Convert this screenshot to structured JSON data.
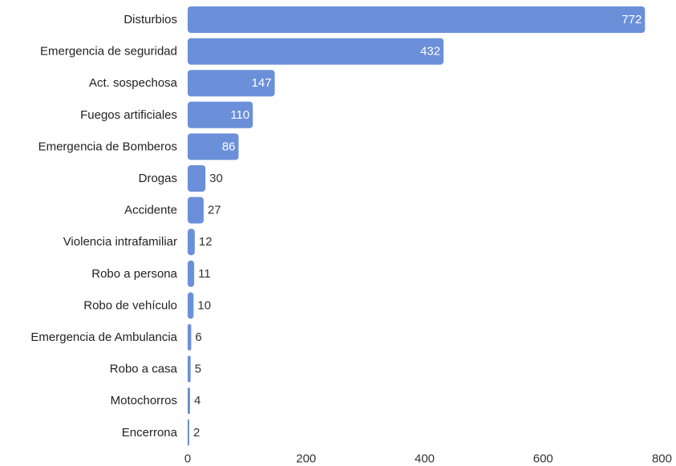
{
  "chart_data": {
    "type": "bar",
    "orientation": "horizontal",
    "categories": [
      "Disturbios",
      "Emergencia de seguridad",
      "Act. sospechosa",
      "Fuegos artificiales",
      "Emergencia de Bomberos",
      "Drogas",
      "Accidente",
      "Violencia intrafamiliar",
      "Robo a persona",
      "Robo de vehículo",
      "Emergencia de Ambulancia",
      "Robo a casa",
      "Motochorros",
      "Encerrona"
    ],
    "values": [
      772,
      432,
      147,
      110,
      86,
      30,
      27,
      12,
      11,
      10,
      6,
      5,
      4,
      2
    ],
    "xlim": [
      0,
      800
    ],
    "xticks": [
      0,
      200,
      400,
      600,
      800
    ],
    "title": "",
    "xlabel": "",
    "ylabel": "",
    "grid": false,
    "legend": "none",
    "bar_color": "#6b8fd9",
    "inside_label_color": "#ffffff",
    "outside_label_color": "#333333",
    "data_labels": true
  }
}
